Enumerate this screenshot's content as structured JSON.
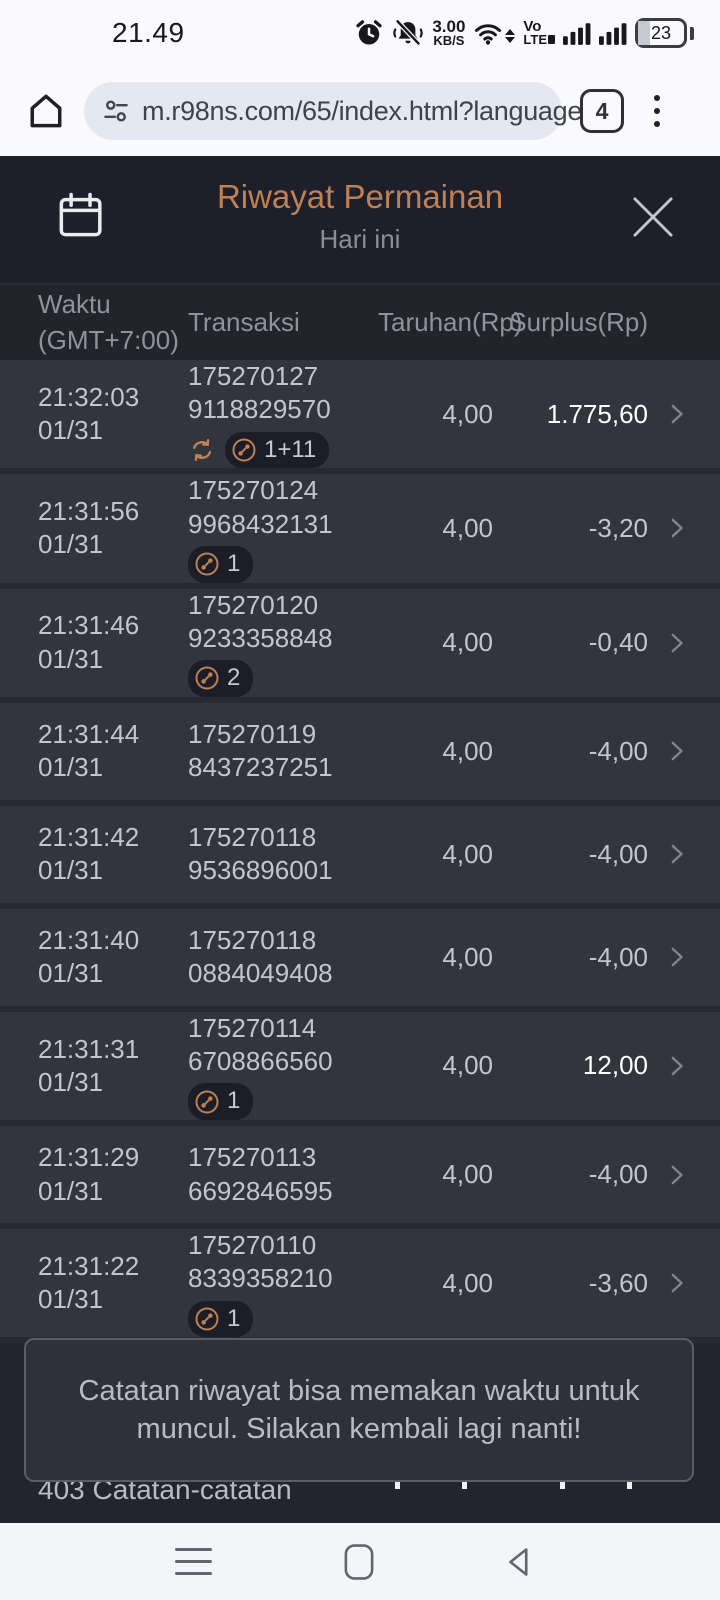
{
  "status_bar": {
    "time": "21.49",
    "net_speed_value": "3.00",
    "net_speed_unit": "KB/S",
    "volte_line1": "Vo",
    "volte_line2": "LTE",
    "battery": "23",
    "icons": [
      "alarm-icon",
      "mute-icon",
      "wifi-icon",
      "signal-bars-icon",
      "battery-icon"
    ]
  },
  "browser": {
    "url": "m.r98ns.com/65/index.html?language",
    "tab_count": "4",
    "icons": [
      "home-icon",
      "site-settings-icon",
      "tab-switcher",
      "kebab-menu-icon"
    ]
  },
  "header": {
    "title": "Riwayat Permainan",
    "subtitle": "Hari ini",
    "icons": [
      "calendar-icon",
      "close-icon"
    ]
  },
  "table": {
    "columns": {
      "time_line1": "Waktu",
      "time_line2": "(GMT+7:00)",
      "transaction": "Transaksi",
      "bet": "Taruhan(Rp)",
      "surplus": "Surplus(Rp)"
    },
    "rows": [
      {
        "time": "21:32:03",
        "date": "01/31",
        "id_line1": "175270127",
        "id_line2": "9118829570",
        "refresh_icon": true,
        "round_badge": "1+11",
        "bet": "4,00",
        "surplus": "1.775,60",
        "positive": true
      },
      {
        "time": "21:31:56",
        "date": "01/31",
        "id_line1": "175270124",
        "id_line2": "9968432131",
        "refresh_icon": false,
        "round_badge": "1",
        "bet": "4,00",
        "surplus": "-3,20",
        "positive": false
      },
      {
        "time": "21:31:46",
        "date": "01/31",
        "id_line1": "175270120",
        "id_line2": "9233358848",
        "refresh_icon": false,
        "round_badge": "2",
        "bet": "4,00",
        "surplus": "-0,40",
        "positive": false
      },
      {
        "time": "21:31:44",
        "date": "01/31",
        "id_line1": "175270119",
        "id_line2": "8437237251",
        "refresh_icon": false,
        "round_badge": null,
        "bet": "4,00",
        "surplus": "-4,00",
        "positive": false
      },
      {
        "time": "21:31:42",
        "date": "01/31",
        "id_line1": "175270118",
        "id_line2": "9536896001",
        "refresh_icon": false,
        "round_badge": null,
        "bet": "4,00",
        "surplus": "-4,00",
        "positive": false
      },
      {
        "time": "21:31:40",
        "date": "01/31",
        "id_line1": "175270118",
        "id_line2": "0884049408",
        "refresh_icon": false,
        "round_badge": null,
        "bet": "4,00",
        "surplus": "-4,00",
        "positive": false
      },
      {
        "time": "21:31:31",
        "date": "01/31",
        "id_line1": "175270114",
        "id_line2": "6708866560",
        "refresh_icon": false,
        "round_badge": "1",
        "bet": "4,00",
        "surplus": "12,00",
        "positive": true
      },
      {
        "time": "21:31:29",
        "date": "01/31",
        "id_line1": "175270113",
        "id_line2": "6692846595",
        "refresh_icon": false,
        "round_badge": null,
        "bet": "4,00",
        "surplus": "-4,00",
        "positive": false
      },
      {
        "time": "21:31:22",
        "date": "01/31",
        "id_line1": "175270110",
        "id_line2": "8339358210",
        "refresh_icon": false,
        "round_badge": "1",
        "bet": "4,00",
        "surplus": "-3,60",
        "positive": false
      }
    ]
  },
  "notice": {
    "text": "Catatan riwayat bisa memakan waktu untuk muncul. Silakan kembali lagi nanti!"
  },
  "footer": {
    "records": "403 Catatan-catatan"
  },
  "colors": {
    "accent_orange": "#bf8054",
    "page_header_bg": "#1d202a",
    "table_header_bg": "#22242c",
    "row_bg": "#32353e",
    "row_separator": "#262932",
    "positive_text": "#ffffff",
    "muted_text": "#8e929b",
    "body_text": "#c2c5cb",
    "chrome_bg": "#fafafc",
    "omnibox_bg": "#e3e8f1"
  }
}
